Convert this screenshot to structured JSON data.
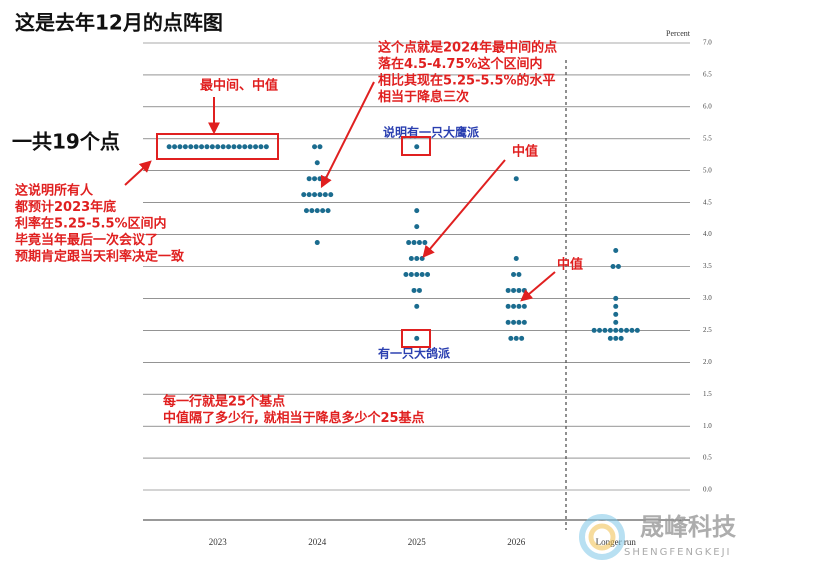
{
  "chart_data": {
    "type": "dot",
    "title": "这是去年12月的点阵图",
    "y_axis_label": "Percent",
    "categories": [
      "2023",
      "2024",
      "2025",
      "2026",
      "Longer run"
    ],
    "values": [
      [
        5.375,
        5.375,
        5.375,
        5.375,
        5.375,
        5.375,
        5.375,
        5.375,
        5.375,
        5.375,
        5.375,
        5.375,
        5.375,
        5.375,
        5.375,
        5.375,
        5.375,
        5.375,
        5.375
      ],
      [
        5.375,
        5.375,
        5.125,
        4.875,
        4.875,
        4.875,
        4.875,
        4.625,
        4.625,
        4.625,
        4.625,
        4.625,
        4.625,
        4.375,
        4.375,
        4.375,
        4.375,
        4.375,
        3.875
      ],
      [
        5.375,
        4.375,
        4.125,
        3.875,
        3.875,
        3.875,
        3.875,
        3.625,
        3.625,
        3.625,
        3.375,
        3.375,
        3.375,
        3.375,
        3.375,
        3.125,
        3.125,
        2.875,
        2.375
      ],
      [
        4.875,
        3.625,
        3.375,
        3.375,
        3.125,
        3.125,
        3.125,
        3.125,
        2.875,
        2.875,
        2.875,
        2.875,
        2.625,
        2.625,
        2.625,
        2.625,
        2.375,
        2.375,
        2.375
      ],
      [
        3.75,
        3.5,
        3.5,
        3.0,
        2.875,
        2.75,
        2.625,
        2.5,
        2.5,
        2.5,
        2.5,
        2.5,
        2.5,
        2.5,
        2.5,
        2.5,
        2.375,
        2.375,
        2.375
      ]
    ],
    "color": "#1b6c8f",
    "ylim": [
      0,
      7
    ],
    "yticks": [
      {
        "value": 0,
        "label": "0.0"
      },
      {
        "value": 0.5,
        "label": "0.5"
      },
      {
        "value": 1,
        "label": "1.0"
      },
      {
        "value": 1.5,
        "label": "1.5"
      },
      {
        "value": 2,
        "label": "2.0"
      },
      {
        "value": 2.5,
        "label": "2.5"
      },
      {
        "value": 3,
        "label": "3.0"
      },
      {
        "value": 3.5,
        "label": "3.5"
      },
      {
        "value": 4,
        "label": "4.0"
      },
      {
        "value": 4.5,
        "label": "4.5"
      },
      {
        "value": 5,
        "label": "5.0"
      },
      {
        "value": 5.5,
        "label": "5.5"
      },
      {
        "value": 6,
        "label": "6.0"
      },
      {
        "value": 6.5,
        "label": "6.5"
      },
      {
        "value": 7,
        "label": "7.0"
      }
    ],
    "grid": true,
    "total_note": "一共19个点",
    "annotations": [
      [
        "最中间、中值"
      ],
      [
        "这个点就是2024年最中间的点",
        "落在4.5-4.75%这个区间内",
        "相比其现在5.25-5.5%的水平",
        "相当于降息三次"
      ],
      [
        "说明有一只大鹰派"
      ],
      [
        "中值"
      ],
      [
        "这说明所有人",
        "都预计2023年底",
        "利率在5.25-5.5%区间内",
        "毕竟当年最后一次会议了",
        "预期肯定跟当天利率决定一致"
      ],
      [
        "中值"
      ],
      [
        "有一只大鸽派"
      ],
      [
        "每一行就是25个基点",
        "中值隔了多少行, 就相当于降息多少个25基点"
      ]
    ],
    "watermark": [
      "晟峰科技",
      "SHENGFENGKEJI"
    ]
  }
}
